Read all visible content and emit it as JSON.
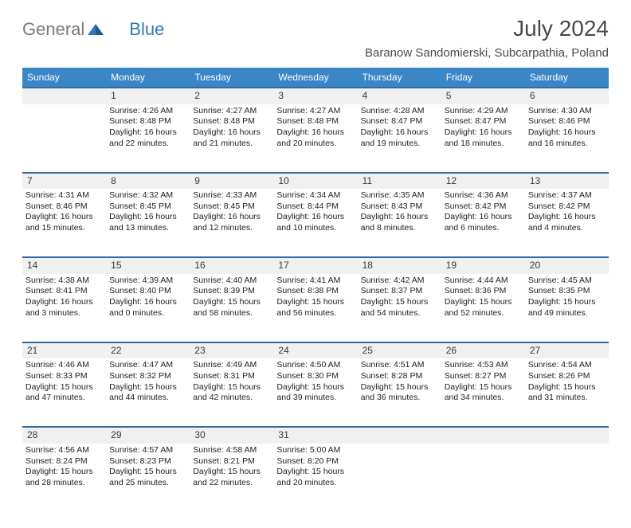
{
  "brand": {
    "part1": "General",
    "part2": "Blue"
  },
  "title": "July 2024",
  "location": "Baranow Sandomierski, Subcarpathia, Poland",
  "colors": {
    "header_bg": "#3b86c6",
    "row_divider": "#2f6da3",
    "daynum_bg": "#f0f0f0",
    "logo_gray": "#7a7a7a",
    "logo_blue": "#2f78bd"
  },
  "daysOfWeek": [
    "Sunday",
    "Monday",
    "Tuesday",
    "Wednesday",
    "Thursday",
    "Friday",
    "Saturday"
  ],
  "weeks": [
    [
      null,
      {
        "n": "1",
        "sr": "4:26 AM",
        "ss": "8:48 PM",
        "dl": "16 hours and 22 minutes."
      },
      {
        "n": "2",
        "sr": "4:27 AM",
        "ss": "8:48 PM",
        "dl": "16 hours and 21 minutes."
      },
      {
        "n": "3",
        "sr": "4:27 AM",
        "ss": "8:48 PM",
        "dl": "16 hours and 20 minutes."
      },
      {
        "n": "4",
        "sr": "4:28 AM",
        "ss": "8:47 PM",
        "dl": "16 hours and 19 minutes."
      },
      {
        "n": "5",
        "sr": "4:29 AM",
        "ss": "8:47 PM",
        "dl": "16 hours and 18 minutes."
      },
      {
        "n": "6",
        "sr": "4:30 AM",
        "ss": "8:46 PM",
        "dl": "16 hours and 16 minutes."
      }
    ],
    [
      {
        "n": "7",
        "sr": "4:31 AM",
        "ss": "8:46 PM",
        "dl": "16 hours and 15 minutes."
      },
      {
        "n": "8",
        "sr": "4:32 AM",
        "ss": "8:45 PM",
        "dl": "16 hours and 13 minutes."
      },
      {
        "n": "9",
        "sr": "4:33 AM",
        "ss": "8:45 PM",
        "dl": "16 hours and 12 minutes."
      },
      {
        "n": "10",
        "sr": "4:34 AM",
        "ss": "8:44 PM",
        "dl": "16 hours and 10 minutes."
      },
      {
        "n": "11",
        "sr": "4:35 AM",
        "ss": "8:43 PM",
        "dl": "16 hours and 8 minutes."
      },
      {
        "n": "12",
        "sr": "4:36 AM",
        "ss": "8:42 PM",
        "dl": "16 hours and 6 minutes."
      },
      {
        "n": "13",
        "sr": "4:37 AM",
        "ss": "8:42 PM",
        "dl": "16 hours and 4 minutes."
      }
    ],
    [
      {
        "n": "14",
        "sr": "4:38 AM",
        "ss": "8:41 PM",
        "dl": "16 hours and 3 minutes."
      },
      {
        "n": "15",
        "sr": "4:39 AM",
        "ss": "8:40 PM",
        "dl": "16 hours and 0 minutes."
      },
      {
        "n": "16",
        "sr": "4:40 AM",
        "ss": "8:39 PM",
        "dl": "15 hours and 58 minutes."
      },
      {
        "n": "17",
        "sr": "4:41 AM",
        "ss": "8:38 PM",
        "dl": "15 hours and 56 minutes."
      },
      {
        "n": "18",
        "sr": "4:42 AM",
        "ss": "8:37 PM",
        "dl": "15 hours and 54 minutes."
      },
      {
        "n": "19",
        "sr": "4:44 AM",
        "ss": "8:36 PM",
        "dl": "15 hours and 52 minutes."
      },
      {
        "n": "20",
        "sr": "4:45 AM",
        "ss": "8:35 PM",
        "dl": "15 hours and 49 minutes."
      }
    ],
    [
      {
        "n": "21",
        "sr": "4:46 AM",
        "ss": "8:33 PM",
        "dl": "15 hours and 47 minutes."
      },
      {
        "n": "22",
        "sr": "4:47 AM",
        "ss": "8:32 PM",
        "dl": "15 hours and 44 minutes."
      },
      {
        "n": "23",
        "sr": "4:49 AM",
        "ss": "8:31 PM",
        "dl": "15 hours and 42 minutes."
      },
      {
        "n": "24",
        "sr": "4:50 AM",
        "ss": "8:30 PM",
        "dl": "15 hours and 39 minutes."
      },
      {
        "n": "25",
        "sr": "4:51 AM",
        "ss": "8:28 PM",
        "dl": "15 hours and 36 minutes."
      },
      {
        "n": "26",
        "sr": "4:53 AM",
        "ss": "8:27 PM",
        "dl": "15 hours and 34 minutes."
      },
      {
        "n": "27",
        "sr": "4:54 AM",
        "ss": "8:26 PM",
        "dl": "15 hours and 31 minutes."
      }
    ],
    [
      {
        "n": "28",
        "sr": "4:56 AM",
        "ss": "8:24 PM",
        "dl": "15 hours and 28 minutes."
      },
      {
        "n": "29",
        "sr": "4:57 AM",
        "ss": "8:23 PM",
        "dl": "15 hours and 25 minutes."
      },
      {
        "n": "30",
        "sr": "4:58 AM",
        "ss": "8:21 PM",
        "dl": "15 hours and 22 minutes."
      },
      {
        "n": "31",
        "sr": "5:00 AM",
        "ss": "8:20 PM",
        "dl": "15 hours and 20 minutes."
      },
      null,
      null,
      null
    ]
  ],
  "labels": {
    "sunrise": "Sunrise: ",
    "sunset": "Sunset: ",
    "daylight": "Daylight: "
  }
}
